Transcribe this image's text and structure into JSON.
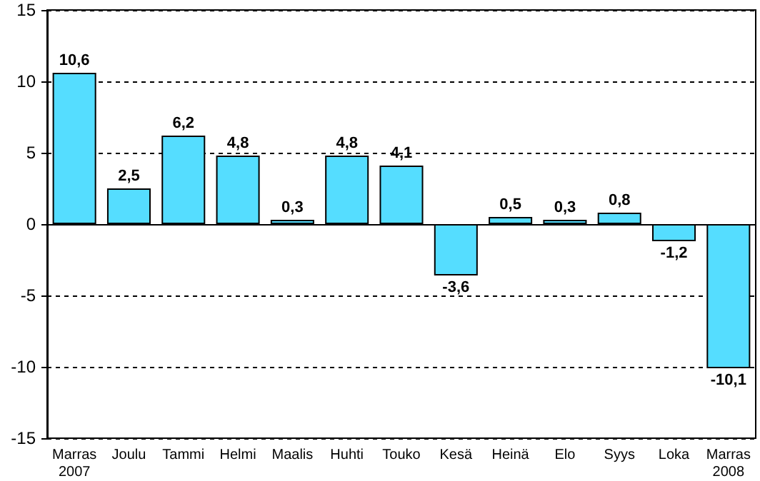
{
  "chart_data": {
    "type": "bar",
    "categories": [
      "Marras\n2007",
      "Joulu",
      "Tammi",
      "Helmi",
      "Maalis",
      "Huhti",
      "Touko",
      "Kesä",
      "Heinä",
      "Elo",
      "Syys",
      "Loka",
      "Marras\n2008"
    ],
    "values": [
      10.6,
      2.5,
      6.2,
      4.8,
      0.3,
      4.8,
      4.1,
      -3.6,
      0.5,
      0.3,
      0.8,
      -1.2,
      -10.1
    ],
    "value_labels": [
      "10,6",
      "2,5",
      "6,2",
      "4,8",
      "0,3",
      "4,8",
      "4,1",
      "-3,6",
      "0,5",
      "0,3",
      "0,8",
      "-1,2",
      "-10,1"
    ],
    "color": "#55ddff",
    "ylim": [
      -15,
      15
    ],
    "yticks": [
      -15,
      -10,
      -5,
      0,
      5,
      10,
      15
    ],
    "grid": "y"
  }
}
